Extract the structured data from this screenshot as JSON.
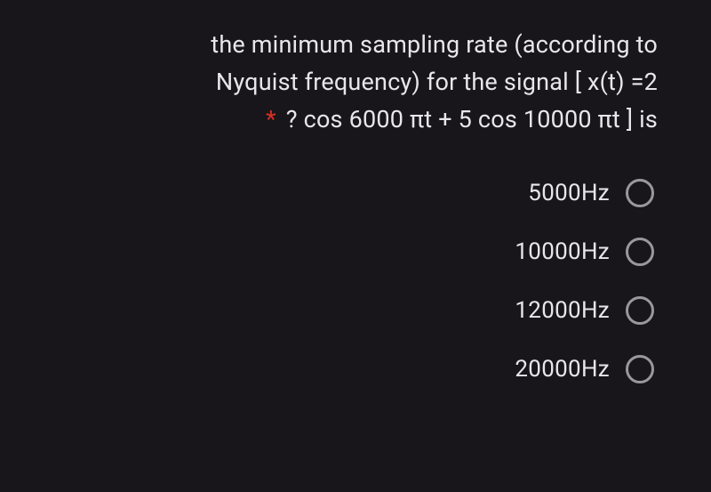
{
  "question": {
    "line1": "the minimum sampling rate (according to",
    "line2": "Nyquist frequency) for the signal [ x(t) =2",
    "line3_after_star": "? cos 6000 πt + 5 cos 10000 πt ] is",
    "required": true
  },
  "options": [
    {
      "label": "5000Hz",
      "selected": false
    },
    {
      "label": "10000Hz",
      "selected": false
    },
    {
      "label": "12000Hz",
      "selected": false
    },
    {
      "label": "20000Hz",
      "selected": false
    }
  ],
  "colors": {
    "background": "#18161a",
    "text": "#e8e6e9",
    "required_star": "#d93025",
    "radio_border": "#9a979d"
  },
  "typography": {
    "question_fontsize": 27,
    "option_fontsize": 26,
    "font_family": "Roboto, Segoe UI, Arial, sans-serif"
  }
}
